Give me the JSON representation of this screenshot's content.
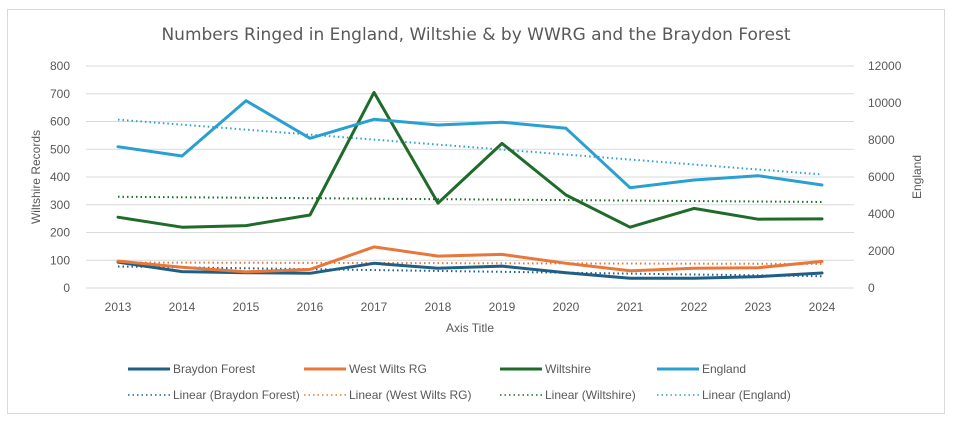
{
  "chart_data": {
    "type": "line",
    "title": "Numbers Ringed in England, Wiltshie & by WWRG and the Braydon Forest",
    "xlabel": "Axis Title",
    "ylabel": "Wiltshire Records",
    "ylabel_right": "England",
    "categories": [
      "2013",
      "2014",
      "2015",
      "2016",
      "2017",
      "2018",
      "2019",
      "2020",
      "2021",
      "2022",
      "2023",
      "2024"
    ],
    "ylim": [
      0,
      800
    ],
    "yticks": [
      "0",
      "100",
      "200",
      "300",
      "400",
      "500",
      "600",
      "700",
      "800"
    ],
    "ylim_right": [
      0,
      12000
    ],
    "yticks_right": [
      "0",
      "2000",
      "4000",
      "6000",
      "8000",
      "10000",
      "12000"
    ],
    "grid": true,
    "legend_position": "bottom",
    "series": [
      {
        "name": "Braydon Forest",
        "axis": "left",
        "color": "#1f5f86",
        "values": [
          93,
          59,
          55,
          53,
          89,
          71,
          79,
          55,
          35,
          35,
          41,
          54
        ]
      },
      {
        "name": "West Wilts RG",
        "axis": "left",
        "color": "#e8773a",
        "values": [
          97,
          75,
          58,
          67,
          148,
          115,
          121,
          89,
          62,
          71,
          73,
          96
        ]
      },
      {
        "name": "Wiltshire",
        "axis": "left",
        "color": "#1e6b2a",
        "values": [
          255,
          219,
          225,
          263,
          705,
          306,
          521,
          335,
          219,
          287,
          248,
          249
        ]
      },
      {
        "name": "England",
        "axis": "right",
        "color": "#2aa0d0",
        "values": [
          7640,
          7135,
          10125,
          8090,
          9120,
          8810,
          8960,
          8630,
          5420,
          5840,
          6070,
          5570
        ]
      }
    ],
    "trendlines": [
      {
        "name": "Linear (Braydon Forest)",
        "of": 0
      },
      {
        "name": "Linear (West Wilts RG)",
        "of": 1
      },
      {
        "name": "Linear (Wiltshire)",
        "of": 2
      },
      {
        "name": "Linear (England)",
        "of": 3
      }
    ]
  }
}
